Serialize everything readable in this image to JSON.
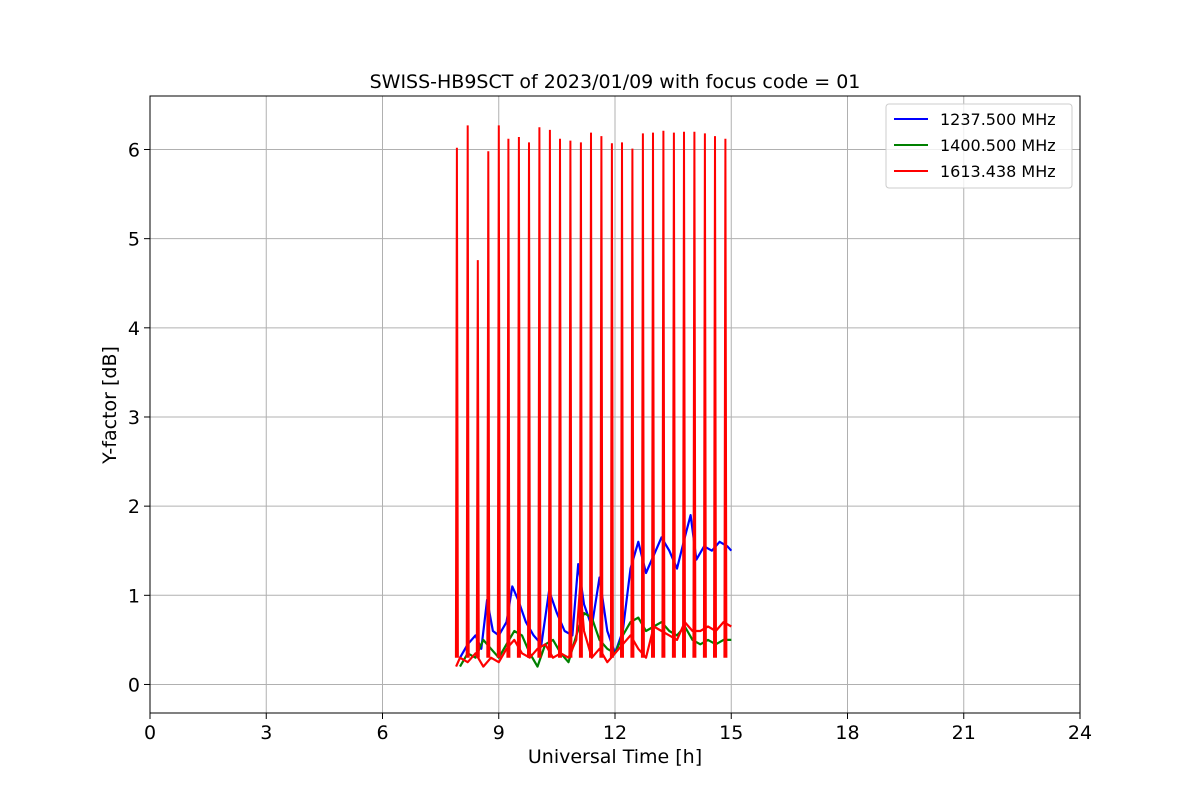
{
  "chart_data": {
    "type": "line",
    "title": "SWISS-HB9SCT of 2023/01/09 with focus code = 01",
    "xlabel": "Universal Time [h]",
    "ylabel": "Y-factor [dB]",
    "xlim": [
      0,
      24
    ],
    "ylim": [
      -0.32,
      6.6
    ],
    "xticks": [
      0,
      3,
      6,
      9,
      12,
      15,
      18,
      21,
      24
    ],
    "xtick_labels": [
      "0",
      "3",
      "6",
      "9",
      "12",
      "15",
      "18",
      "21",
      "24"
    ],
    "yticks": [
      0,
      1,
      2,
      3,
      4,
      5,
      6
    ],
    "ytick_labels": [
      "0",
      "1",
      "2",
      "3",
      "4",
      "5",
      "6"
    ],
    "grid": true,
    "legend_position": "top-right",
    "series": [
      {
        "name": "1237.500 MHz",
        "color": "#0000ff",
        "points": [
          [
            8.0,
            0.3
          ],
          [
            8.2,
            0.45
          ],
          [
            8.4,
            0.55
          ],
          [
            8.55,
            0.4
          ],
          [
            8.7,
            0.95
          ],
          [
            8.85,
            0.6
          ],
          [
            9.0,
            0.55
          ],
          [
            9.2,
            0.7
          ],
          [
            9.35,
            1.1
          ],
          [
            9.5,
            0.95
          ],
          [
            9.7,
            0.7
          ],
          [
            9.9,
            0.55
          ],
          [
            10.1,
            0.45
          ],
          [
            10.3,
            1.05
          ],
          [
            10.5,
            0.8
          ],
          [
            10.7,
            0.6
          ],
          [
            10.9,
            0.55
          ],
          [
            11.05,
            1.35
          ],
          [
            11.2,
            0.9
          ],
          [
            11.4,
            0.65
          ],
          [
            11.6,
            1.2
          ],
          [
            11.8,
            0.6
          ],
          [
            12.0,
            0.35
          ],
          [
            12.2,
            0.6
          ],
          [
            12.4,
            1.3
          ],
          [
            12.6,
            1.6
          ],
          [
            12.8,
            1.25
          ],
          [
            13.0,
            1.45
          ],
          [
            13.2,
            1.65
          ],
          [
            13.4,
            1.5
          ],
          [
            13.6,
            1.3
          ],
          [
            13.8,
            1.65
          ],
          [
            13.95,
            1.9
          ],
          [
            14.1,
            1.4
          ],
          [
            14.3,
            1.55
          ],
          [
            14.5,
            1.5
          ],
          [
            14.7,
            1.6
          ],
          [
            14.9,
            1.55
          ],
          [
            15.0,
            1.5
          ]
        ]
      },
      {
        "name": "1400.500 MHz",
        "color": "#008000",
        "points": [
          [
            8.0,
            0.2
          ],
          [
            8.2,
            0.35
          ],
          [
            8.4,
            0.3
          ],
          [
            8.6,
            0.5
          ],
          [
            8.8,
            0.4
          ],
          [
            9.0,
            0.3
          ],
          [
            9.2,
            0.45
          ],
          [
            9.4,
            0.6
          ],
          [
            9.6,
            0.55
          ],
          [
            9.8,
            0.35
          ],
          [
            10.0,
            0.2
          ],
          [
            10.2,
            0.45
          ],
          [
            10.4,
            0.5
          ],
          [
            10.6,
            0.35
          ],
          [
            10.8,
            0.25
          ],
          [
            11.0,
            0.55
          ],
          [
            11.2,
            0.8
          ],
          [
            11.4,
            0.75
          ],
          [
            11.6,
            0.5
          ],
          [
            11.8,
            0.4
          ],
          [
            12.0,
            0.35
          ],
          [
            12.2,
            0.55
          ],
          [
            12.4,
            0.7
          ],
          [
            12.6,
            0.75
          ],
          [
            12.8,
            0.6
          ],
          [
            13.0,
            0.65
          ],
          [
            13.2,
            0.7
          ],
          [
            13.4,
            0.6
          ],
          [
            13.6,
            0.55
          ],
          [
            13.8,
            0.65
          ],
          [
            14.0,
            0.5
          ],
          [
            14.2,
            0.45
          ],
          [
            14.4,
            0.5
          ],
          [
            14.6,
            0.45
          ],
          [
            14.8,
            0.5
          ],
          [
            15.0,
            0.5
          ]
        ]
      },
      {
        "name": "1613.438 MHz",
        "color": "#ff0000",
        "points": [
          [
            7.9,
            0.2
          ],
          [
            8.0,
            0.3
          ],
          [
            8.2,
            0.25
          ],
          [
            8.4,
            0.35
          ],
          [
            8.6,
            0.2
          ],
          [
            8.8,
            0.3
          ],
          [
            9.0,
            0.25
          ],
          [
            9.2,
            0.4
          ],
          [
            9.4,
            0.5
          ],
          [
            9.6,
            0.35
          ],
          [
            9.8,
            0.3
          ],
          [
            10.0,
            0.4
          ],
          [
            10.2,
            0.45
          ],
          [
            10.4,
            0.3
          ],
          [
            10.6,
            0.35
          ],
          [
            10.8,
            0.3
          ],
          [
            11.0,
            0.5
          ],
          [
            11.1,
            1.1
          ],
          [
            11.2,
            0.6
          ],
          [
            11.4,
            0.3
          ],
          [
            11.6,
            0.4
          ],
          [
            11.8,
            0.25
          ],
          [
            12.0,
            0.35
          ],
          [
            12.2,
            0.45
          ],
          [
            12.4,
            0.55
          ],
          [
            12.6,
            0.4
          ],
          [
            12.8,
            0.3
          ],
          [
            13.0,
            0.65
          ],
          [
            13.2,
            0.6
          ],
          [
            13.4,
            0.55
          ],
          [
            13.6,
            0.5
          ],
          [
            13.8,
            0.7
          ],
          [
            14.0,
            0.6
          ],
          [
            14.2,
            0.6
          ],
          [
            14.4,
            0.65
          ],
          [
            14.6,
            0.6
          ],
          [
            14.8,
            0.7
          ],
          [
            15.0,
            0.65
          ]
        ],
        "spikes": [
          [
            7.92,
            6.02
          ],
          [
            8.2,
            6.27
          ],
          [
            8.46,
            4.76
          ],
          [
            8.73,
            5.98
          ],
          [
            9.0,
            6.27
          ],
          [
            9.25,
            6.12
          ],
          [
            9.52,
            6.14
          ],
          [
            9.78,
            6.08
          ],
          [
            10.05,
            6.25
          ],
          [
            10.32,
            6.22
          ],
          [
            10.58,
            6.12
          ],
          [
            10.85,
            6.1
          ],
          [
            11.12,
            6.08
          ],
          [
            11.38,
            6.19
          ],
          [
            11.65,
            6.15
          ],
          [
            11.92,
            6.07
          ],
          [
            12.18,
            6.08
          ],
          [
            12.45,
            6.01
          ],
          [
            12.72,
            6.18
          ],
          [
            12.98,
            6.19
          ],
          [
            13.25,
            6.21
          ],
          [
            13.52,
            6.19
          ],
          [
            13.78,
            6.2
          ],
          [
            14.05,
            6.2
          ],
          [
            14.32,
            6.18
          ],
          [
            14.58,
            6.15
          ],
          [
            14.85,
            6.12
          ]
        ]
      }
    ]
  }
}
